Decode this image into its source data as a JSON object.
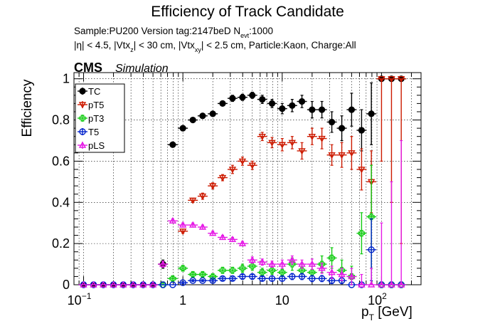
{
  "chart_data": {
    "type": "scatter",
    "title": "Efficiency of Track Candidate",
    "subtitle_line1": "Sample:PU200   Version tag:2147beD  N",
    "subtitle_line1_sub": "evt",
    "subtitle_line1_tail": ":1000",
    "subtitle_line2_parts": [
      "|η| < 4.5, |Vtx",
      "z",
      "| < 30 cm, |Vtx",
      "xy",
      "| < 2.5 cm, Particle:Kaon, Charge:All"
    ],
    "experiment": "CMS",
    "experiment_tag": "Simulation",
    "xlabel": "p",
    "xlabel_sub": "T",
    "xlabel_unit": " [GeV]",
    "ylabel": "Efficiency",
    "xscale": "log",
    "xlim": [
      0.08,
      250
    ],
    "ylim": [
      0,
      1.03
    ],
    "grid": true,
    "legend_position": "top-left",
    "yticks": [
      {
        "v": 0,
        "label": "0"
      },
      {
        "v": 0.2,
        "label": "0.2"
      },
      {
        "v": 0.4,
        "label": "0.4"
      },
      {
        "v": 0.6,
        "label": "0.6"
      },
      {
        "v": 0.8,
        "label": "0.8"
      },
      {
        "v": 1,
        "label": "1"
      }
    ],
    "xticks": [
      {
        "v": 0.1,
        "label": "10",
        "sup": "−1"
      },
      {
        "v": 1,
        "label": "1",
        "sup": ""
      },
      {
        "v": 10,
        "label": "10",
        "sup": ""
      },
      {
        "v": 100,
        "label": "10",
        "sup": "2"
      }
    ],
    "series": [
      {
        "name": "TC",
        "color": "#000000",
        "marker": "filled-circle",
        "x": [
          0.1,
          0.126,
          0.158,
          0.2,
          0.251,
          0.316,
          0.398,
          0.5,
          0.63,
          0.79,
          1.0,
          1.26,
          1.58,
          2.0,
          2.51,
          3.16,
          3.98,
          5.0,
          6.3,
          7.9,
          10,
          12.6,
          15.8,
          20,
          25.1,
          31.6,
          39.8,
          50,
          63,
          79,
          100,
          126,
          158
        ],
        "y": [
          0,
          0,
          0,
          0,
          0,
          0,
          0,
          0,
          0.1,
          0.68,
          0.76,
          0.8,
          0.82,
          0.83,
          0.88,
          0.905,
          0.91,
          0.92,
          0.9,
          0.88,
          0.855,
          0.87,
          0.89,
          0.85,
          0.85,
          0.79,
          0.76,
          0.85,
          0.75,
          0.83,
          1.0,
          1.0,
          1.0
        ],
        "err": [
          0,
          0,
          0,
          0,
          0,
          0,
          0,
          0,
          0.02,
          0.01,
          0.01,
          0.01,
          0.01,
          0.01,
          0.01,
          0.015,
          0.015,
          0.015,
          0.02,
          0.02,
          0.025,
          0.03,
          0.03,
          0.04,
          0.04,
          0.05,
          0.06,
          0.08,
          0.1,
          0.15,
          0,
          0,
          0
        ]
      },
      {
        "name": "pT5",
        "color": "#cc1a00",
        "marker": "open-triangle-down",
        "x": [
          1.0,
          1.26,
          1.58,
          2.0,
          2.51,
          3.16,
          3.98,
          5.0,
          6.3,
          7.9,
          10,
          12.6,
          15.8,
          20,
          25.1,
          31.6,
          39.8,
          50,
          63,
          79,
          100,
          126,
          158
        ],
        "y": [
          0.26,
          0.41,
          0.43,
          0.48,
          0.52,
          0.56,
          0.6,
          0.58,
          0.72,
          0.69,
          0.68,
          0.69,
          0.65,
          0.72,
          0.71,
          0.63,
          0.63,
          0.64,
          0.56,
          0.5,
          1.0,
          1.0,
          1.0
        ],
        "err": [
          0.01,
          0.01,
          0.015,
          0.015,
          0.015,
          0.02,
          0.02,
          0.02,
          0.02,
          0.025,
          0.03,
          0.03,
          0.04,
          0.04,
          0.05,
          0.05,
          0.06,
          0.08,
          0.1,
          0.15,
          0.4,
          0.6,
          0.8
        ]
      },
      {
        "name": "pT3",
        "color": "#11cc11",
        "marker": "open-cross",
        "x": [
          0.63,
          0.79,
          1.0,
          1.26,
          1.58,
          2.0,
          2.51,
          3.16,
          3.98,
          5.0,
          6.3,
          7.9,
          10,
          12.6,
          15.8,
          20,
          25.1,
          31.6,
          39.8,
          50,
          63,
          79,
          100,
          126,
          158
        ],
        "y": [
          0.0,
          0.03,
          0.08,
          0.05,
          0.05,
          0.04,
          0.07,
          0.07,
          0.08,
          0.09,
          0.06,
          0.07,
          0.06,
          0.1,
          0.07,
          0.06,
          0.1,
          0.13,
          0.07,
          0.04,
          0.25,
          0.33,
          0.0,
          0.0,
          0.0
        ],
        "err": [
          0.01,
          0.01,
          0.01,
          0.01,
          0.01,
          0.01,
          0.015,
          0.015,
          0.02,
          0.02,
          0.02,
          0.02,
          0.02,
          0.03,
          0.03,
          0.03,
          0.04,
          0.05,
          0.05,
          0.05,
          0.1,
          0.25,
          0,
          0,
          0
        ]
      },
      {
        "name": "T5",
        "color": "#0022cc",
        "marker": "open-circle",
        "x": [
          0.1,
          0.126,
          0.158,
          0.2,
          0.251,
          0.316,
          0.398,
          0.5,
          0.63,
          0.79,
          1.0,
          1.26,
          1.58,
          2.0,
          2.51,
          3.16,
          3.98,
          5.0,
          6.3,
          7.9,
          10,
          12.6,
          15.8,
          20,
          25.1,
          31.6,
          39.8,
          50,
          63,
          79,
          100,
          126,
          158
        ],
        "y": [
          0,
          0,
          0,
          0,
          0,
          0,
          0,
          0,
          0,
          0,
          0.01,
          0.02,
          0.02,
          0.02,
          0.03,
          0.03,
          0.04,
          0.04,
          0.03,
          0.03,
          0.03,
          0.04,
          0.04,
          0.03,
          0.03,
          0.02,
          0.02,
          0.0,
          0.0,
          0.17,
          0.0,
          0.0,
          0.0
        ],
        "err": [
          0,
          0,
          0,
          0,
          0,
          0,
          0,
          0,
          0,
          0,
          0.005,
          0.005,
          0.005,
          0.006,
          0.008,
          0.008,
          0.01,
          0.01,
          0.01,
          0.012,
          0.012,
          0.015,
          0.015,
          0.015,
          0.015,
          0.015,
          0.015,
          0,
          0,
          0.15,
          0,
          0,
          0
        ]
      },
      {
        "name": "pLS",
        "color": "#e61ae6",
        "marker": "open-triangle-up",
        "x": [
          0.1,
          0.126,
          0.158,
          0.2,
          0.251,
          0.316,
          0.398,
          0.5,
          0.63,
          0.79,
          1.0,
          1.26,
          1.58,
          2.0,
          2.51,
          3.16,
          3.98,
          5.0,
          6.3,
          7.9,
          10,
          12.6,
          15.8,
          20,
          25.1,
          31.6,
          39.8,
          50,
          63,
          79,
          100,
          126,
          158
        ],
        "y": [
          0,
          0,
          0,
          0,
          0,
          0,
          0,
          0,
          0.1,
          0.31,
          0.29,
          0.29,
          0.28,
          0.25,
          0.23,
          0.22,
          0.2,
          0.12,
          0.11,
          0.1,
          0.1,
          0.12,
          0.1,
          0.1,
          0.08,
          0.06,
          0.05,
          0.04,
          0.0,
          0.0,
          0.0,
          0.0,
          0.0
        ],
        "err": [
          0,
          0,
          0,
          0,
          0,
          0,
          0,
          0,
          0.015,
          0.01,
          0.01,
          0.01,
          0.01,
          0.01,
          0.01,
          0.01,
          0.01,
          0.015,
          0.015,
          0.015,
          0.02,
          0.02,
          0.02,
          0.025,
          0.025,
          0.03,
          0.03,
          0.04,
          0.05,
          0.08,
          0.3,
          0.5,
          0.7
        ]
      }
    ]
  }
}
